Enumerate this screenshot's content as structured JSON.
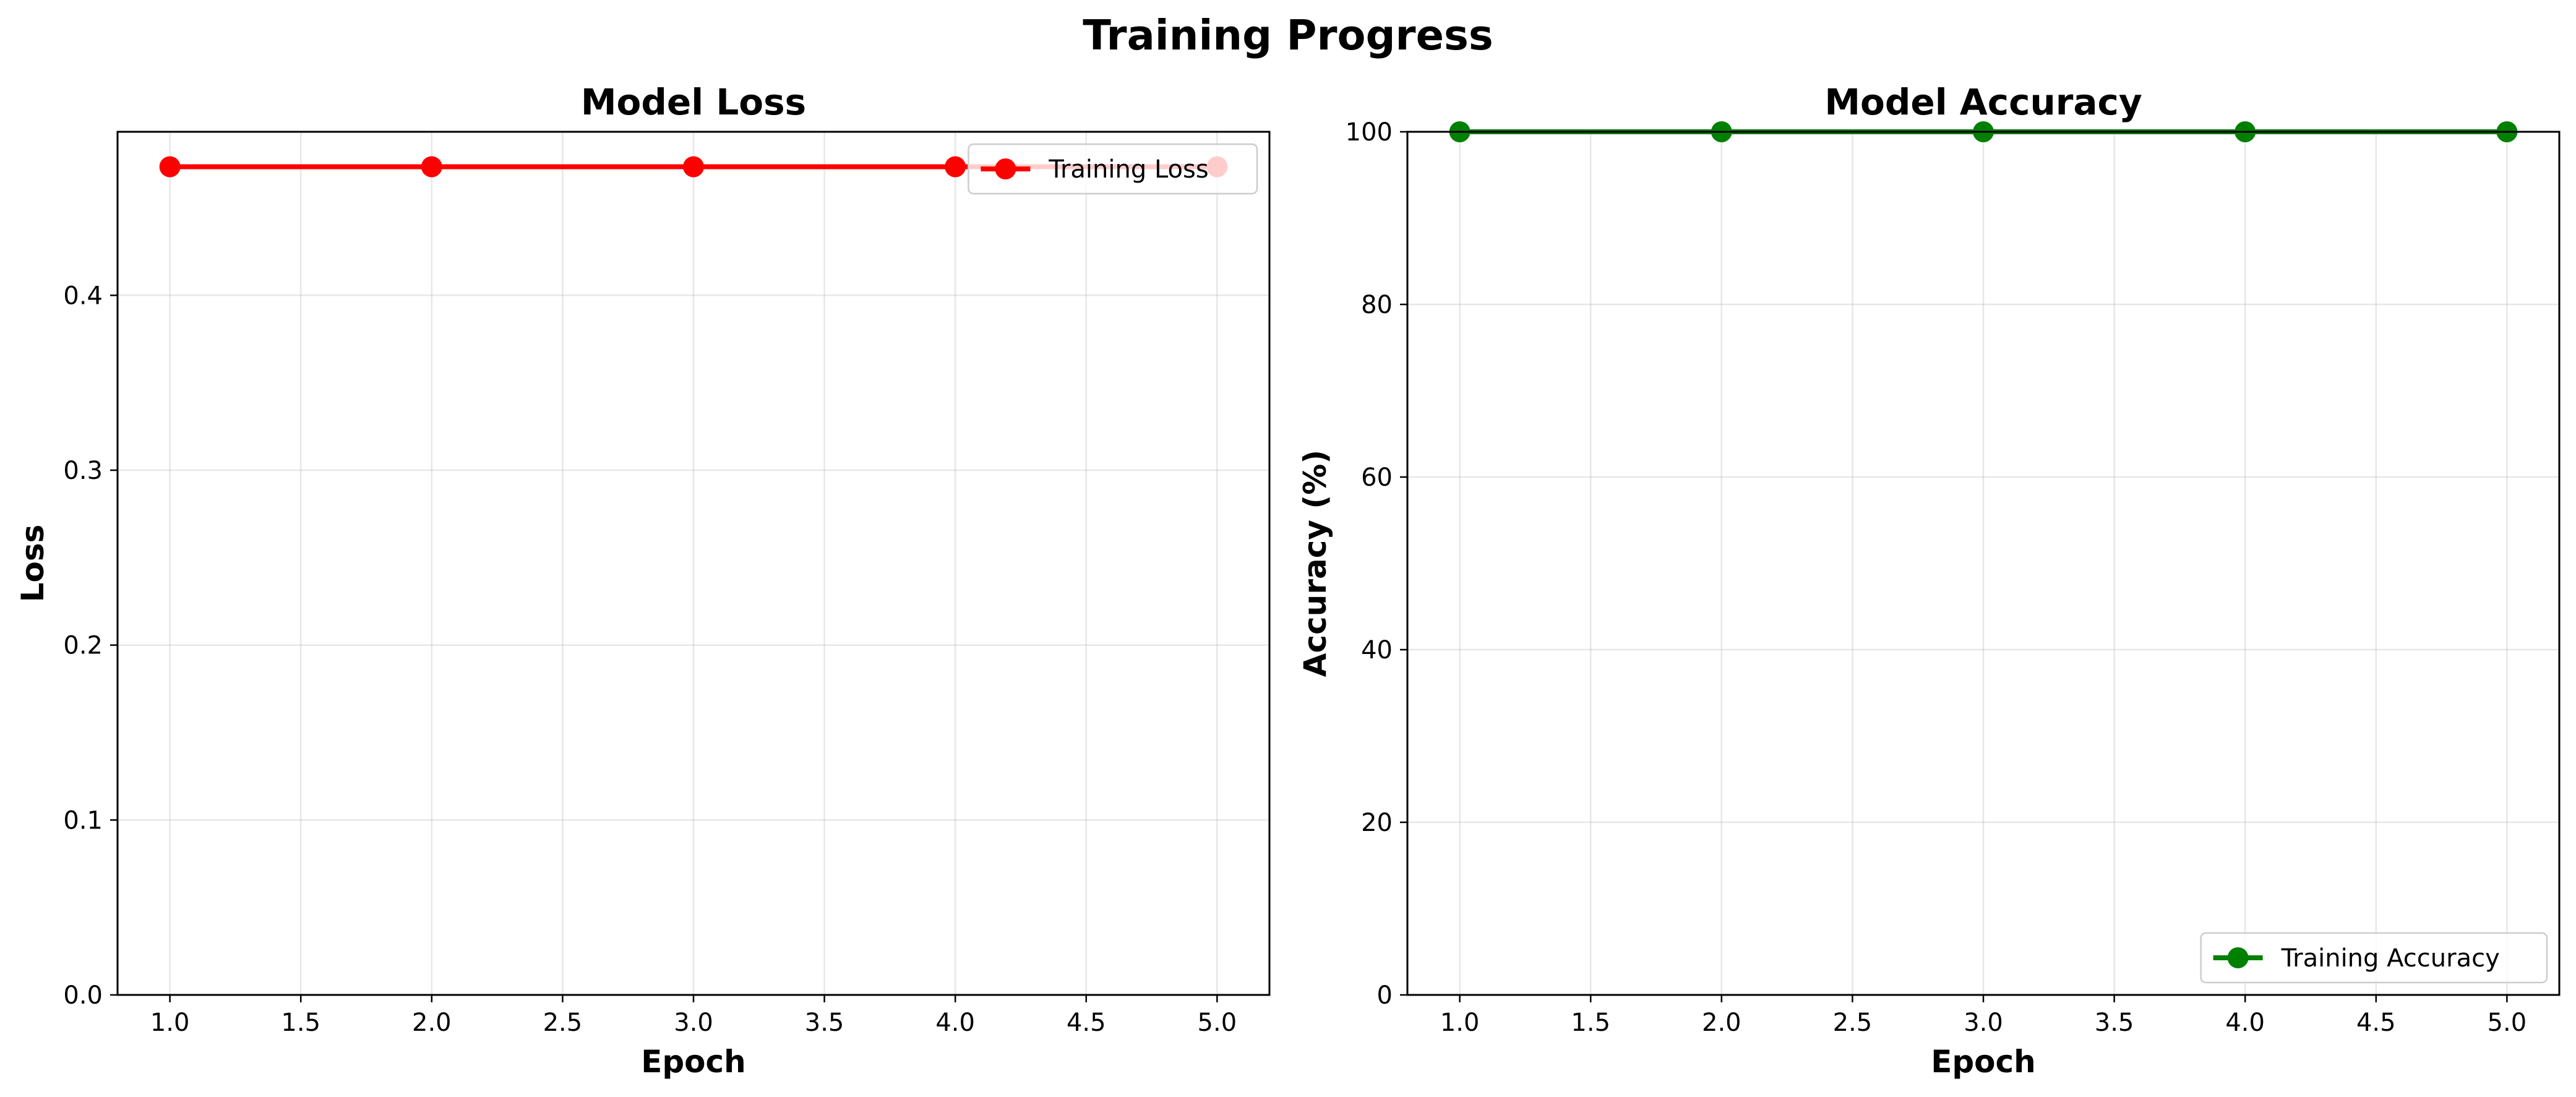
{
  "figure": {
    "title": "Training Progress"
  },
  "chart_data": [
    {
      "type": "line",
      "title": "Model Loss",
      "xlabel": "Epoch",
      "ylabel": "Loss",
      "xlim": [
        0.8,
        5.2
      ],
      "ylim": [
        0.0,
        0.4935
      ],
      "xticks": [
        1.0,
        1.5,
        2.0,
        2.5,
        3.0,
        3.5,
        4.0,
        4.5,
        5.0
      ],
      "xtick_labels": [
        "1.0",
        "1.5",
        "2.0",
        "2.5",
        "3.0",
        "3.5",
        "4.0",
        "4.5",
        "5.0"
      ],
      "yticks": [
        0.0,
        0.1,
        0.2,
        0.3,
        0.4
      ],
      "ytick_labels": [
        "0.0",
        "0.1",
        "0.2",
        "0.3",
        "0.4"
      ],
      "grid": true,
      "legend_position": "upper right",
      "x": [
        1,
        2,
        3,
        4,
        5
      ],
      "series": [
        {
          "name": "Training Loss",
          "color": "#ff0000",
          "marker": "circle",
          "values": [
            0.4735,
            0.4735,
            0.4735,
            0.4735,
            0.4735
          ]
        }
      ]
    },
    {
      "type": "line",
      "title": "Model Accuracy",
      "xlabel": "Epoch",
      "ylabel": "Accuracy (%)",
      "xlim": [
        0.8,
        5.2
      ],
      "ylim": [
        0,
        100
      ],
      "xticks": [
        1.0,
        1.5,
        2.0,
        2.5,
        3.0,
        3.5,
        4.0,
        4.5,
        5.0
      ],
      "xtick_labels": [
        "1.0",
        "1.5",
        "2.0",
        "2.5",
        "3.0",
        "3.5",
        "4.0",
        "4.5",
        "5.0"
      ],
      "yticks": [
        0,
        20,
        40,
        60,
        80,
        100
      ],
      "ytick_labels": [
        "0",
        "20",
        "40",
        "60",
        "80",
        "100"
      ],
      "grid": true,
      "legend_position": "lower right",
      "x": [
        1,
        2,
        3,
        4,
        5
      ],
      "series": [
        {
          "name": "Training Accuracy",
          "color": "#008000",
          "marker": "circle",
          "values": [
            100,
            100,
            100,
            100,
            100
          ]
        }
      ]
    }
  ]
}
